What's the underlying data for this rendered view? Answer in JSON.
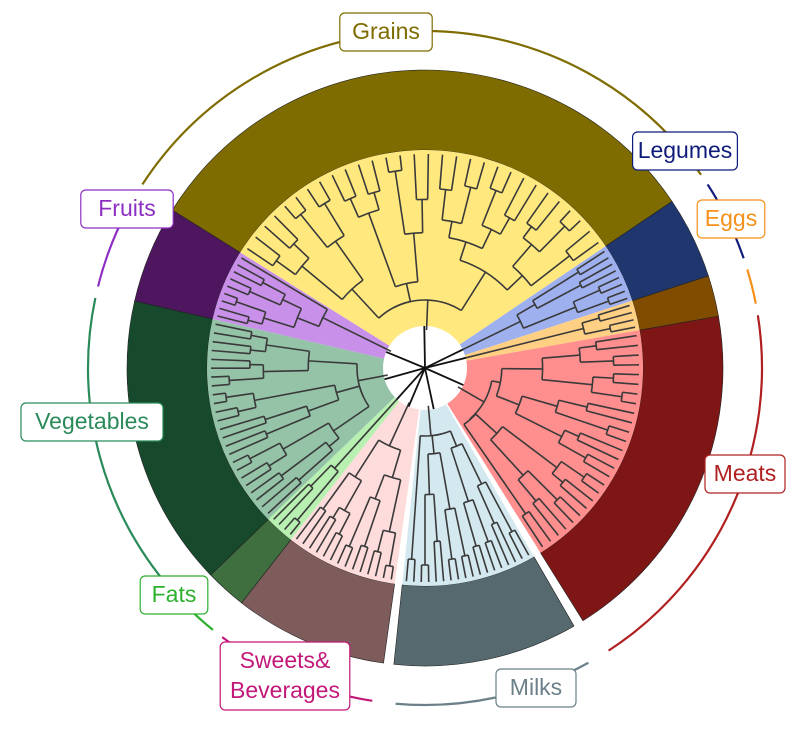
{
  "groups": [
    {
      "key": "grains",
      "label": "Grains",
      "dark": "#7f6c00",
      "light": "#ffe97f",
      "line": "#7f6c00"
    },
    {
      "key": "legumes",
      "label": "Legumes",
      "dark": "#1f366f",
      "light": "#9fb0ef",
      "line": "#0f1c7a"
    },
    {
      "key": "eggs",
      "label": "Eggs",
      "dark": "#7f4c00",
      "light": "#ffcf84",
      "line": "#f5901a"
    },
    {
      "key": "meats",
      "label": "Meats",
      "dark": "#7f1616",
      "light": "#ff8e8e",
      "line": "#b02020"
    },
    {
      "key": "milks",
      "label": "Milks",
      "dark": "#55696f",
      "light": "#d4e8ef",
      "line": "#6b8088"
    },
    {
      "key": "sweets",
      "label": "Sweets&",
      "label2": "Beverages",
      "dark": "#7f5c5c",
      "light": "#ffdcdc",
      "line": "#c2187a"
    },
    {
      "key": "fats",
      "label": "Fats",
      "dark": "#3f6f3f",
      "light": "#b7f0b0",
      "line": "#2fb02f"
    },
    {
      "key": "vegetables",
      "label": "Vegetables",
      "dark": "#174a2c",
      "light": "#94c3a8",
      "line": "#2a8a5a"
    },
    {
      "key": "fruits",
      "label": "Fruits",
      "dark": "#4f1660",
      "light": "#c890e8",
      "line": "#8e2fc4"
    }
  ]
}
